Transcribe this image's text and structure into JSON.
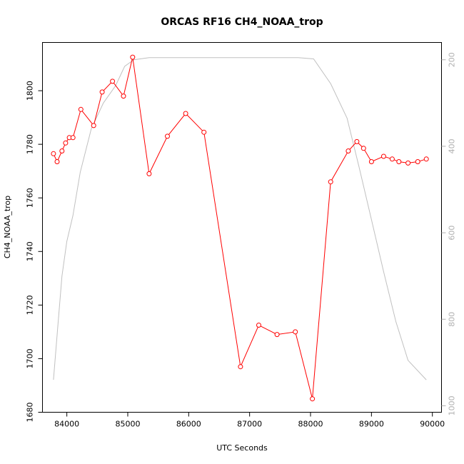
{
  "chart_data": {
    "type": "line",
    "title": "ORCAS RF16 CH4_NOAA_trop",
    "xlabel": "UTC Seconds",
    "ylabel": "CH4_NOAA_trop",
    "xlim": [
      83600,
      90150
    ],
    "ylim": [
      1680,
      1818
    ],
    "y2lim": [
      1015,
      160
    ],
    "x_ticks": [
      84000,
      85000,
      86000,
      87000,
      88000,
      89000,
      90000
    ],
    "y_ticks": [
      1680,
      1700,
      1720,
      1740,
      1760,
      1780,
      1800
    ],
    "y2_ticks": [
      200,
      400,
      600,
      800,
      1000
    ],
    "grid": false,
    "series": [
      {
        "axis": "left",
        "color": "#ff0000",
        "marker": "open-circle",
        "x": [
          83780,
          83840,
          83920,
          83980,
          84040,
          84100,
          84230,
          84440,
          84580,
          84750,
          84930,
          85080,
          85350,
          85650,
          85950,
          86250,
          86850,
          87150,
          87450,
          87750,
          88030,
          88330,
          88620,
          88760,
          88870,
          89000,
          89200,
          89340,
          89450,
          89600,
          89760,
          89900
        ],
        "values": [
          1776.5,
          1773.5,
          1777.5,
          1780.5,
          1782.5,
          1782.5,
          1793,
          1787,
          1799.5,
          1803.5,
          1798,
          1812.5,
          1769,
          1783,
          1791.5,
          1784.5,
          1697,
          1712.5,
          1709,
          1710,
          1685,
          1766,
          1777.5,
          1781,
          1778.5,
          1773.5,
          1775.5,
          1774.5,
          1773.5,
          1773,
          1773.5,
          1774.5
        ]
      },
      {
        "axis": "right",
        "color": "#c0c0c0",
        "marker": "none",
        "x": [
          83780,
          83850,
          83920,
          84000,
          84100,
          84220,
          84400,
          84600,
          84800,
          84950,
          85100,
          85350,
          85700,
          86000,
          86500,
          87000,
          87500,
          87800,
          88050,
          88330,
          88600,
          88800,
          89000,
          89200,
          89400,
          89600,
          89900
        ],
        "values": [
          940,
          820,
          700,
          620,
          560,
          460,
          360,
          300,
          260,
          215,
          200,
          195,
          195,
          195,
          195,
          195,
          195,
          195,
          198,
          255,
          335,
          450,
          570,
          690,
          805,
          895,
          940
        ]
      }
    ]
  }
}
